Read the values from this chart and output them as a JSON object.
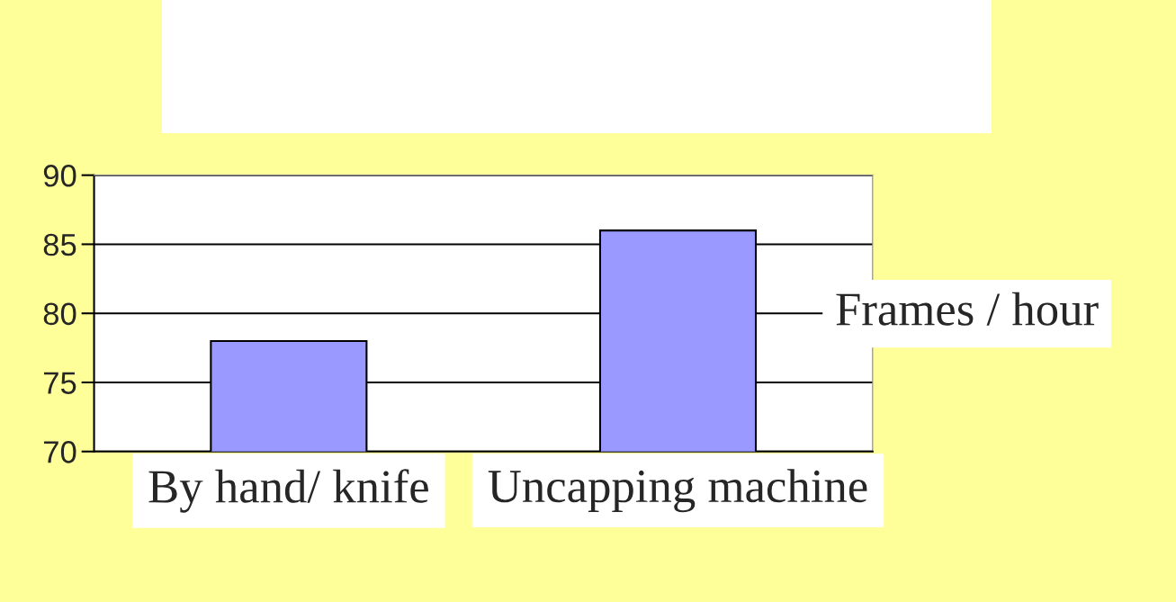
{
  "chart_data": {
    "type": "bar",
    "categories": [
      "By hand/ knife",
      "Uncapping machine"
    ],
    "values": [
      78,
      86
    ],
    "color": "#9999ff",
    "ylim": [
      70,
      90
    ],
    "yticks": [
      70,
      75,
      80,
      85,
      90
    ],
    "grid": "y",
    "annotations": [
      "Frames / hour"
    ]
  }
}
